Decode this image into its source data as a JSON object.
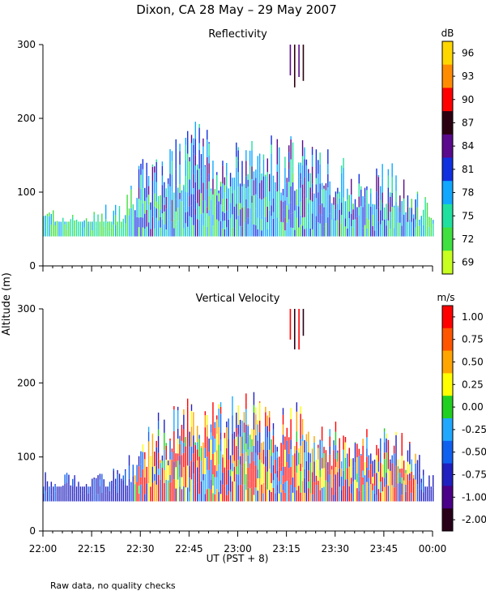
{
  "title": "Dixon, CA 28 May – 29 May 2007",
  "ylabel": "Altitude (m)",
  "xlabel": "UT  (PST + 8)",
  "footnote": "Raw data, no quality checks",
  "x_ticks": [
    "22:00",
    "22:15",
    "22:30",
    "22:45",
    "23:00",
    "23:15",
    "23:30",
    "23:45",
    "00:00"
  ],
  "chart_data": [
    {
      "type": "heatmap",
      "title": "Reflectivity",
      "units": "dB",
      "xlabel": "UT  (PST + 8)",
      "ylabel": "Altitude (m)",
      "xlim": [
        "22:00",
        "00:00"
      ],
      "ylim": [
        0,
        300
      ],
      "y_ticks": [
        0,
        100,
        200,
        300
      ],
      "colorbar_ticks": [
        "96",
        "93",
        "90",
        "87",
        "84",
        "81",
        "78",
        "75",
        "72",
        "69"
      ],
      "colorbar_colors": [
        "#ffd700",
        "#ff8c00",
        "#ff0000",
        "#2b0010",
        "#5a0a8c",
        "#1030e0",
        "#10a8ff",
        "#20e0a0",
        "#40e040",
        "#c8ff20"
      ],
      "echo_base_m": 40,
      "echo_top_profile": [
        {
          "t": "22:00",
          "top_m": 80
        },
        {
          "t": "22:15",
          "top_m": 80
        },
        {
          "t": "22:25",
          "top_m": 90
        },
        {
          "t": "22:30",
          "top_m": 150
        },
        {
          "t": "22:40",
          "top_m": 170
        },
        {
          "t": "22:45",
          "top_m": 200
        },
        {
          "t": "22:55",
          "top_m": 180
        },
        {
          "t": "23:05",
          "top_m": 200
        },
        {
          "t": "23:12",
          "top_m": 175
        },
        {
          "t": "23:20",
          "top_m": 185
        },
        {
          "t": "23:30",
          "top_m": 150
        },
        {
          "t": "23:40",
          "top_m": 140
        },
        {
          "t": "23:50",
          "top_m": 140
        },
        {
          "t": "00:00",
          "top_m": 80
        }
      ],
      "elevated_echo": {
        "t_start": "23:16",
        "t_end": "23:20",
        "bottom_m": 240,
        "top_m": 300
      }
    },
    {
      "type": "heatmap",
      "title": "Vertical Velocity",
      "units": "m/s",
      "xlabel": "UT  (PST + 8)",
      "ylabel": "Altitude (m)",
      "xlim": [
        "22:00",
        "00:00"
      ],
      "ylim": [
        0,
        300
      ],
      "y_ticks": [
        0,
        100,
        200,
        300
      ],
      "colorbar_ticks": [
        "1.00",
        "0.75",
        "0.50",
        "0.25",
        "0.00",
        "-0.25",
        "-0.50",
        "-0.75",
        "-1.00",
        "-2.00"
      ],
      "colorbar_colors": [
        "#ff0000",
        "#ff5500",
        "#ffa500",
        "#ffff00",
        "#20d020",
        "#20a8ff",
        "#1060f0",
        "#2020c0",
        "#4a0088",
        "#280018"
      ],
      "echo_base_m": 40,
      "echo_top_profile": [
        {
          "t": "22:00",
          "top_m": 80
        },
        {
          "t": "22:15",
          "top_m": 80
        },
        {
          "t": "22:25",
          "top_m": 90
        },
        {
          "t": "22:30",
          "top_m": 150
        },
        {
          "t": "22:40",
          "top_m": 170
        },
        {
          "t": "22:45",
          "top_m": 200
        },
        {
          "t": "22:55",
          "top_m": 180
        },
        {
          "t": "23:05",
          "top_m": 200
        },
        {
          "t": "23:12",
          "top_m": 175
        },
        {
          "t": "23:20",
          "top_m": 185
        },
        {
          "t": "23:30",
          "top_m": 150
        },
        {
          "t": "23:40",
          "top_m": 140
        },
        {
          "t": "23:50",
          "top_m": 140
        },
        {
          "t": "00:00",
          "top_m": 80
        }
      ],
      "elevated_echo": {
        "t_start": "23:16",
        "t_end": "23:20",
        "bottom_m": 240,
        "top_m": 300
      }
    }
  ]
}
